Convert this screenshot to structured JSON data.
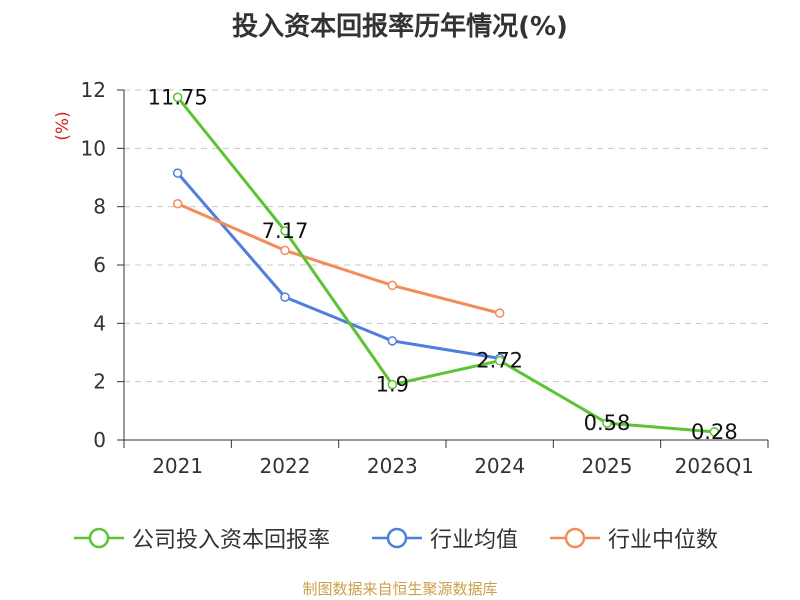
{
  "chart_data": {
    "type": "line",
    "title": "投入资本回报率历年情况(%)",
    "ylabel": "(%)",
    "xlabel": "",
    "ylim": [
      0,
      12
    ],
    "yticks": [
      0,
      2,
      4,
      6,
      8,
      10,
      12
    ],
    "grid": true,
    "categories": [
      "2021",
      "2022",
      "2023",
      "2024",
      "2025",
      "2026Q1"
    ],
    "series": [
      {
        "name": "公司投入资本回报率",
        "color": "#5cc433",
        "values": [
          11.75,
          7.17,
          1.9,
          2.72,
          0.58,
          0.28
        ],
        "labels": [
          "11.75",
          "7.17",
          "1.9",
          "2.72",
          "0.58",
          "0.28"
        ]
      },
      {
        "name": "行业均值",
        "color": "#4f7fdb",
        "values": [
          9.15,
          4.9,
          3.4,
          2.8,
          null,
          null
        ]
      },
      {
        "name": "行业中位数",
        "color": "#f28c5a",
        "values": [
          8.1,
          6.5,
          5.3,
          4.35,
          null,
          null
        ]
      }
    ],
    "legend_position": "bottom"
  },
  "source_note": "制图数据来自恒生聚源数据库",
  "colors": {
    "axis": "#333333",
    "grid": "#c8c8c8",
    "ylabel": "#d42020"
  }
}
